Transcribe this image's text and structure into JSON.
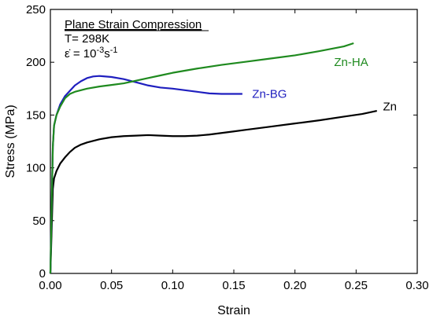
{
  "chart_data": {
    "type": "line",
    "title": "",
    "xlabel": "Strain",
    "ylabel": "Stress (MPa)",
    "xlim": [
      0,
      0.3
    ],
    "ylim": [
      0,
      250
    ],
    "x_ticks": [
      0,
      0.05,
      0.1,
      0.15,
      0.2,
      0.25,
      0.3
    ],
    "x_tick_labels": [
      "0.00",
      "0.05",
      "0.10",
      "0.15",
      "0.20",
      "0.25",
      "0.30"
    ],
    "y_ticks": [
      0,
      50,
      100,
      150,
      200,
      250
    ],
    "y_tick_labels": [
      "0",
      "50",
      "100",
      "150",
      "200",
      "250"
    ],
    "grid": false,
    "annotations": {
      "heading": "Plane Strain Compression",
      "temperature": "T= 298K",
      "strain_rate_prefix": "ε̇ = 10",
      "strain_rate_exp1": "-3",
      "strain_rate_unit": "s",
      "strain_rate_exp2": "-1"
    },
    "series": [
      {
        "name": "Zn",
        "color": "#000000",
        "label_at": [
          0.272,
          158
        ],
        "points": [
          [
            0,
            0
          ],
          [
            0.001,
            40
          ],
          [
            0.002,
            80
          ],
          [
            0.003,
            90
          ],
          [
            0.005,
            97
          ],
          [
            0.008,
            104
          ],
          [
            0.012,
            110
          ],
          [
            0.016,
            115
          ],
          [
            0.02,
            119
          ],
          [
            0.025,
            122
          ],
          [
            0.03,
            124
          ],
          [
            0.04,
            127
          ],
          [
            0.05,
            129
          ],
          [
            0.06,
            130
          ],
          [
            0.07,
            130.5
          ],
          [
            0.08,
            131
          ],
          [
            0.09,
            130.5
          ],
          [
            0.1,
            130
          ],
          [
            0.11,
            130
          ],
          [
            0.12,
            130.5
          ],
          [
            0.13,
            131.5
          ],
          [
            0.14,
            133
          ],
          [
            0.15,
            134.5
          ],
          [
            0.16,
            136
          ],
          [
            0.18,
            139
          ],
          [
            0.2,
            142
          ],
          [
            0.22,
            145
          ],
          [
            0.24,
            148.5
          ],
          [
            0.255,
            151
          ],
          [
            0.267,
            154
          ]
        ]
      },
      {
        "name": "Zn-BG",
        "color": "#1f1fbf",
        "label_at": [
          0.165,
          170
        ],
        "points": [
          [
            0,
            0
          ],
          [
            0.001,
            60
          ],
          [
            0.002,
            120
          ],
          [
            0.003,
            140
          ],
          [
            0.005,
            150
          ],
          [
            0.008,
            160
          ],
          [
            0.012,
            168
          ],
          [
            0.016,
            173
          ],
          [
            0.02,
            178
          ],
          [
            0.025,
            182
          ],
          [
            0.03,
            185
          ],
          [
            0.035,
            186.5
          ],
          [
            0.04,
            187
          ],
          [
            0.05,
            186
          ],
          [
            0.06,
            184
          ],
          [
            0.07,
            181
          ],
          [
            0.08,
            178
          ],
          [
            0.09,
            176
          ],
          [
            0.1,
            175
          ],
          [
            0.11,
            173.5
          ],
          [
            0.12,
            172
          ],
          [
            0.13,
            170.5
          ],
          [
            0.14,
            170
          ],
          [
            0.15,
            170
          ],
          [
            0.157,
            170
          ]
        ]
      },
      {
        "name": "Zn-HA",
        "color": "#1f8a1f",
        "label_at": [
          0.232,
          200
        ],
        "points": [
          [
            0,
            0
          ],
          [
            0.001,
            60
          ],
          [
            0.002,
            120
          ],
          [
            0.003,
            140
          ],
          [
            0.005,
            150
          ],
          [
            0.008,
            158
          ],
          [
            0.012,
            166
          ],
          [
            0.016,
            170
          ],
          [
            0.02,
            172
          ],
          [
            0.03,
            175
          ],
          [
            0.04,
            177
          ],
          [
            0.05,
            178.5
          ],
          [
            0.06,
            180
          ],
          [
            0.07,
            182.5
          ],
          [
            0.08,
            185
          ],
          [
            0.09,
            187.5
          ],
          [
            0.1,
            190
          ],
          [
            0.12,
            194
          ],
          [
            0.14,
            197.5
          ],
          [
            0.16,
            200.5
          ],
          [
            0.18,
            203.5
          ],
          [
            0.2,
            206.5
          ],
          [
            0.22,
            210.5
          ],
          [
            0.24,
            215
          ],
          [
            0.248,
            218
          ]
        ]
      }
    ]
  }
}
